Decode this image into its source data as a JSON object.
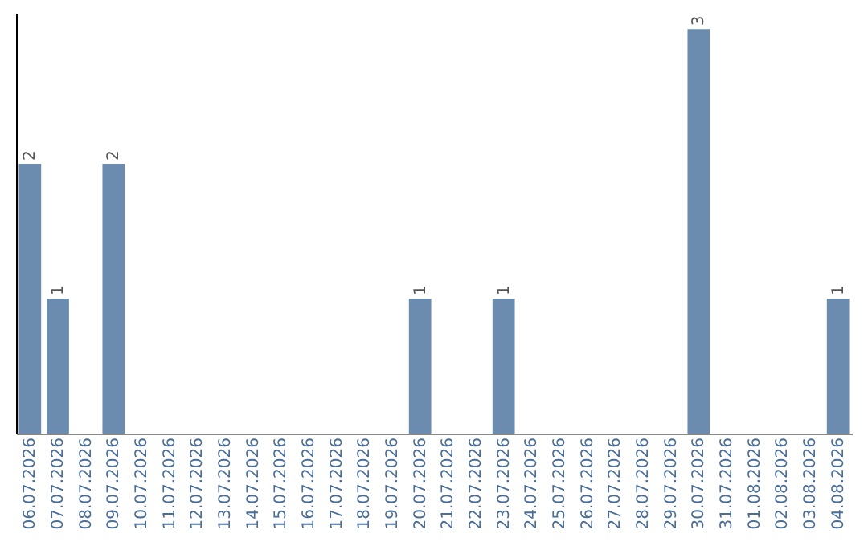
{
  "chart_data": {
    "type": "bar",
    "categories": [
      "06.07.2026",
      "07.07.2026",
      "08.07.2026",
      "09.07.2026",
      "10.07.2026",
      "11.07.2026",
      "12.07.2026",
      "13.07.2026",
      "14.07.2026",
      "15.07.2026",
      "16.07.2026",
      "17.07.2026",
      "18.07.2026",
      "19.07.2026",
      "20.07.2026",
      "21.07.2026",
      "22.07.2026",
      "23.07.2026",
      "24.07.2026",
      "25.07.2026",
      "26.07.2026",
      "27.07.2026",
      "28.07.2026",
      "29.07.2026",
      "30.07.2026",
      "31.07.2026",
      "01.08.2026",
      "02.08.2026",
      "03.08.2026",
      "04.08.2026"
    ],
    "values": [
      2,
      1,
      null,
      2,
      null,
      null,
      null,
      null,
      null,
      null,
      null,
      null,
      null,
      null,
      1,
      null,
      null,
      1,
      null,
      null,
      null,
      null,
      null,
      null,
      3,
      null,
      null,
      null,
      null,
      1
    ],
    "color": "#6b8cae",
    "ylim": [
      0,
      3.12
    ],
    "data_labels": true,
    "tick_labels": "x",
    "grid": false
  }
}
